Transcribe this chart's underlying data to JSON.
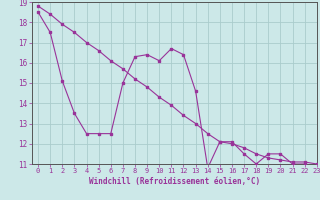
{
  "xlabel": "Windchill (Refroidissement éolien,°C)",
  "bg_color": "#cce8e8",
  "line_color": "#993399",
  "grid_color": "#aacccc",
  "x_data": [
    0,
    1,
    2,
    3,
    4,
    5,
    6,
    7,
    8,
    9,
    10,
    11,
    12,
    13,
    14,
    15,
    16,
    17,
    18,
    19,
    20,
    21,
    22,
    23
  ],
  "y_zigzag": [
    18.5,
    17.5,
    15.1,
    13.5,
    12.5,
    12.5,
    12.5,
    15.0,
    16.3,
    16.4,
    16.1,
    16.7,
    16.4,
    14.6,
    10.8,
    12.1,
    12.1,
    11.5,
    11.0,
    11.5,
    11.5,
    11.0,
    11.0,
    null
  ],
  "y_trend": [
    18.8,
    18.4,
    17.9,
    17.5,
    17.0,
    16.6,
    16.1,
    15.7,
    15.2,
    14.8,
    14.3,
    13.9,
    13.4,
    13.0,
    12.5,
    12.1,
    12.0,
    11.8,
    11.5,
    11.3,
    11.2,
    11.1,
    11.1,
    11.0
  ],
  "ylim": [
    11,
    19
  ],
  "xlim": [
    -0.5,
    23
  ],
  "yticks": [
    11,
    12,
    13,
    14,
    15,
    16,
    17,
    18,
    19
  ],
  "xticks": [
    0,
    1,
    2,
    3,
    4,
    5,
    6,
    7,
    8,
    9,
    10,
    11,
    12,
    13,
    14,
    15,
    16,
    17,
    18,
    19,
    20,
    21,
    22,
    23
  ]
}
